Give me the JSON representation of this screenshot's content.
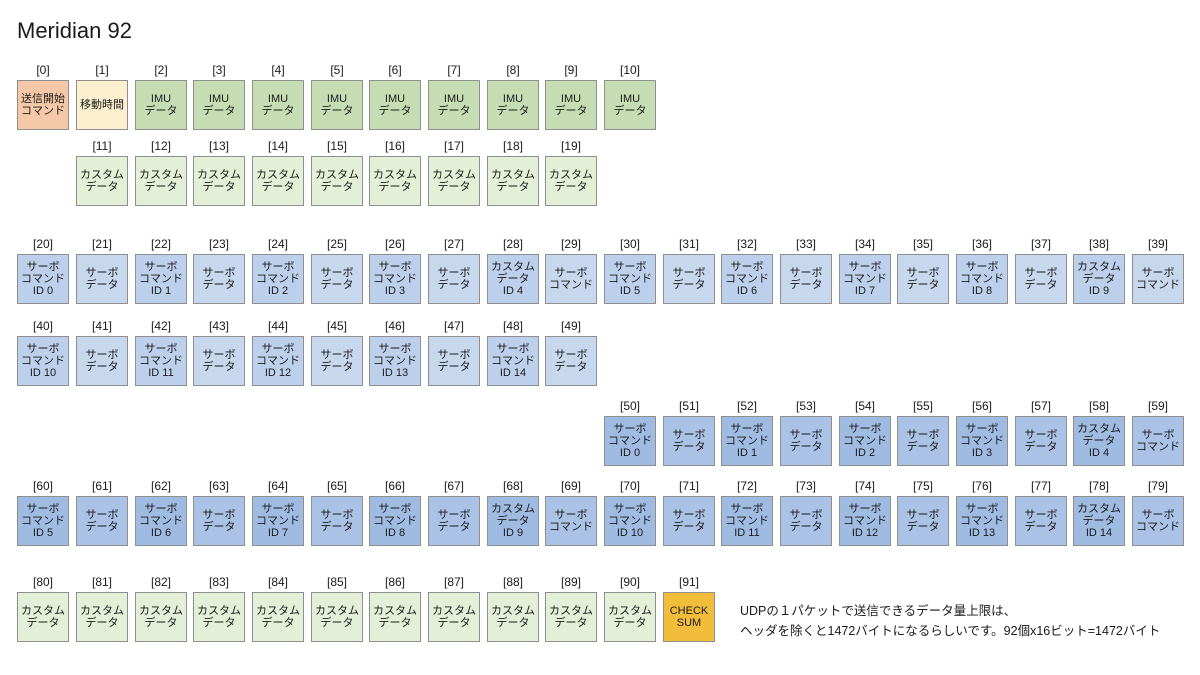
{
  "title": "Meridian 92",
  "note_line1": "UDPの１パケットで送信できるデータ量上限は、",
  "note_line2": "ヘッダを除くと1472バイトになるらしいです。92個x16ビット=1472バイト",
  "colors": {
    "cmd": "#f5c9a8",
    "move": "#fdf0cf",
    "imu": "#c6ddb3",
    "custom": "#e3efd6",
    "servo_cmd": "#bcd0eb",
    "servo_data": "#c7d7ee",
    "servo_cmd_alt": "#9fbbe2",
    "servo_data_alt": "#a9c2e5",
    "checksum": "#f3bd3c"
  },
  "cells": [
    {
      "index": "[0]",
      "label": "送信開始\nコマンド",
      "kind": "cmd"
    },
    {
      "index": "[1]",
      "label": "移動時間",
      "kind": "move"
    },
    {
      "index": "[2]",
      "label": "IMU\nデータ",
      "kind": "imu"
    },
    {
      "index": "[3]",
      "label": "IMU\nデータ",
      "kind": "imu"
    },
    {
      "index": "[4]",
      "label": "IMU\nデータ",
      "kind": "imu"
    },
    {
      "index": "[5]",
      "label": "IMU\nデータ",
      "kind": "imu"
    },
    {
      "index": "[6]",
      "label": "IMU\nデータ",
      "kind": "imu"
    },
    {
      "index": "[7]",
      "label": "IMU\nデータ",
      "kind": "imu"
    },
    {
      "index": "[8]",
      "label": "IMU\nデータ",
      "kind": "imu"
    },
    {
      "index": "[9]",
      "label": "IMU\nデータ",
      "kind": "imu"
    },
    {
      "index": "[10]",
      "label": "IMU\nデータ",
      "kind": "imu"
    },
    {
      "index": "[11]",
      "label": "カスタム\nデータ",
      "kind": "custom"
    },
    {
      "index": "[12]",
      "label": "カスタム\nデータ",
      "kind": "custom"
    },
    {
      "index": "[13]",
      "label": "カスタム\nデータ",
      "kind": "custom"
    },
    {
      "index": "[14]",
      "label": "カスタム\nデータ",
      "kind": "custom"
    },
    {
      "index": "[15]",
      "label": "カスタム\nデータ",
      "kind": "custom"
    },
    {
      "index": "[16]",
      "label": "カスタム\nデータ",
      "kind": "custom"
    },
    {
      "index": "[17]",
      "label": "カスタム\nデータ",
      "kind": "custom"
    },
    {
      "index": "[18]",
      "label": "カスタム\nデータ",
      "kind": "custom"
    },
    {
      "index": "[19]",
      "label": "カスタム\nデータ",
      "kind": "custom"
    },
    {
      "index": "[20]",
      "label": "サーボ\nコマンド\nID 0",
      "kind": "servo_cmd"
    },
    {
      "index": "[21]",
      "label": "サーボ\nデータ",
      "kind": "servo_data"
    },
    {
      "index": "[22]",
      "label": "サーボ\nコマンド\nID 1",
      "kind": "servo_cmd"
    },
    {
      "index": "[23]",
      "label": "サーボ\nデータ",
      "kind": "servo_data"
    },
    {
      "index": "[24]",
      "label": "サーボ\nコマンド\nID 2",
      "kind": "servo_cmd"
    },
    {
      "index": "[25]",
      "label": "サーボ\nデータ",
      "kind": "servo_data"
    },
    {
      "index": "[26]",
      "label": "サーボ\nコマンド\nID 3",
      "kind": "servo_cmd"
    },
    {
      "index": "[27]",
      "label": "サーボ\nデータ",
      "kind": "servo_data"
    },
    {
      "index": "[28]",
      "label": "カスタム\nデータ\nID 4",
      "kind": "servo_cmd"
    },
    {
      "index": "[29]",
      "label": "サーボ\nコマンド",
      "kind": "servo_data"
    },
    {
      "index": "[30]",
      "label": "サーボ\nコマンド\nID 5",
      "kind": "servo_cmd"
    },
    {
      "index": "[31]",
      "label": "サーボ\nデータ",
      "kind": "servo_data"
    },
    {
      "index": "[32]",
      "label": "サーボ\nコマンド\nID 6",
      "kind": "servo_cmd"
    },
    {
      "index": "[33]",
      "label": "サーボ\nデータ",
      "kind": "servo_data"
    },
    {
      "index": "[34]",
      "label": "サーボ\nコマンド\nID 7",
      "kind": "servo_cmd"
    },
    {
      "index": "[35]",
      "label": "サーボ\nデータ",
      "kind": "servo_data"
    },
    {
      "index": "[36]",
      "label": "サーボ\nコマンド\nID 8",
      "kind": "servo_cmd"
    },
    {
      "index": "[37]",
      "label": "サーボ\nデータ",
      "kind": "servo_data"
    },
    {
      "index": "[38]",
      "label": "カスタム\nデータ\nID 9",
      "kind": "servo_cmd"
    },
    {
      "index": "[39]",
      "label": "サーボ\nコマンド",
      "kind": "servo_data"
    },
    {
      "index": "[40]",
      "label": "サーボ\nコマンド\nID 10",
      "kind": "servo_cmd"
    },
    {
      "index": "[41]",
      "label": "サーボ\nデータ",
      "kind": "servo_data"
    },
    {
      "index": "[42]",
      "label": "サーボ\nコマンド\nID 11",
      "kind": "servo_cmd"
    },
    {
      "index": "[43]",
      "label": "サーボ\nデータ",
      "kind": "servo_data"
    },
    {
      "index": "[44]",
      "label": "サーボ\nコマンド\nID 12",
      "kind": "servo_cmd"
    },
    {
      "index": "[45]",
      "label": "サーボ\nデータ",
      "kind": "servo_data"
    },
    {
      "index": "[46]",
      "label": "サーボ\nコマンド\nID 13",
      "kind": "servo_cmd"
    },
    {
      "index": "[47]",
      "label": "サーボ\nデータ",
      "kind": "servo_data"
    },
    {
      "index": "[48]",
      "label": "サーボ\nコマンド\nID 14",
      "kind": "servo_cmd"
    },
    {
      "index": "[49]",
      "label": "サーボ\nデータ",
      "kind": "servo_data"
    },
    {
      "index": "[50]",
      "label": "サーボ\nコマンド\nID 0",
      "kind": "servo_cmd_alt"
    },
    {
      "index": "[51]",
      "label": "サーボ\nデータ",
      "kind": "servo_data_alt"
    },
    {
      "index": "[52]",
      "label": "サーボ\nコマンド\nID 1",
      "kind": "servo_cmd_alt"
    },
    {
      "index": "[53]",
      "label": "サーボ\nデータ",
      "kind": "servo_data_alt"
    },
    {
      "index": "[54]",
      "label": "サーボ\nコマンド\nID 2",
      "kind": "servo_cmd_alt"
    },
    {
      "index": "[55]",
      "label": "サーボ\nデータ",
      "kind": "servo_data_alt"
    },
    {
      "index": "[56]",
      "label": "サーボ\nコマンド\nID 3",
      "kind": "servo_cmd_alt"
    },
    {
      "index": "[57]",
      "label": "サーボ\nデータ",
      "kind": "servo_data_alt"
    },
    {
      "index": "[58]",
      "label": "カスタム\nデータ\nID 4",
      "kind": "servo_cmd_alt"
    },
    {
      "index": "[59]",
      "label": "サーボ\nコマンド",
      "kind": "servo_data_alt"
    },
    {
      "index": "[60]",
      "label": "サーボ\nコマンド\nID 5",
      "kind": "servo_cmd_alt"
    },
    {
      "index": "[61]",
      "label": "サーボ\nデータ",
      "kind": "servo_data_alt"
    },
    {
      "index": "[62]",
      "label": "サーボ\nコマンド\nID 6",
      "kind": "servo_cmd_alt"
    },
    {
      "index": "[63]",
      "label": "サーボ\nデータ",
      "kind": "servo_data_alt"
    },
    {
      "index": "[64]",
      "label": "サーボ\nコマンド\nID 7",
      "kind": "servo_cmd_alt"
    },
    {
      "index": "[65]",
      "label": "サーボ\nデータ",
      "kind": "servo_data_alt"
    },
    {
      "index": "[66]",
      "label": "サーボ\nコマンド\nID 8",
      "kind": "servo_cmd_alt"
    },
    {
      "index": "[67]",
      "label": "サーボ\nデータ",
      "kind": "servo_data_alt"
    },
    {
      "index": "[68]",
      "label": "カスタム\nデータ\nID 9",
      "kind": "servo_cmd_alt"
    },
    {
      "index": "[69]",
      "label": "サーボ\nコマンド",
      "kind": "servo_data_alt"
    },
    {
      "index": "[70]",
      "label": "サーボ\nコマンド\nID 10",
      "kind": "servo_cmd_alt"
    },
    {
      "index": "[71]",
      "label": "サーボ\nデータ",
      "kind": "servo_data_alt"
    },
    {
      "index": "[72]",
      "label": "サーボ\nコマンド\nID 11",
      "kind": "servo_cmd_alt"
    },
    {
      "index": "[73]",
      "label": "サーボ\nデータ",
      "kind": "servo_data_alt"
    },
    {
      "index": "[74]",
      "label": "サーボ\nコマンド\nID 12",
      "kind": "servo_cmd_alt"
    },
    {
      "index": "[75]",
      "label": "サーボ\nデータ",
      "kind": "servo_data_alt"
    },
    {
      "index": "[76]",
      "label": "サーボ\nコマンド\nID 13",
      "kind": "servo_cmd_alt"
    },
    {
      "index": "[77]",
      "label": "サーボ\nデータ",
      "kind": "servo_data_alt"
    },
    {
      "index": "[78]",
      "label": "カスタム\nデータ\nID 14",
      "kind": "servo_cmd_alt"
    },
    {
      "index": "[79]",
      "label": "サーボ\nコマンド",
      "kind": "servo_data_alt"
    },
    {
      "index": "[80]",
      "label": "カスタム\nデータ",
      "kind": "custom"
    },
    {
      "index": "[81]",
      "label": "カスタム\nデータ",
      "kind": "custom"
    },
    {
      "index": "[82]",
      "label": "カスタム\nデータ",
      "kind": "custom"
    },
    {
      "index": "[83]",
      "label": "カスタム\nデータ",
      "kind": "custom"
    },
    {
      "index": "[84]",
      "label": "カスタム\nデータ",
      "kind": "custom"
    },
    {
      "index": "[85]",
      "label": "カスタム\nデータ",
      "kind": "custom"
    },
    {
      "index": "[86]",
      "label": "カスタム\nデータ",
      "kind": "custom"
    },
    {
      "index": "[87]",
      "label": "カスタム\nデータ",
      "kind": "custom"
    },
    {
      "index": "[88]",
      "label": "カスタム\nデータ",
      "kind": "custom"
    },
    {
      "index": "[89]",
      "label": "カスタム\nデータ",
      "kind": "custom"
    },
    {
      "index": "[90]",
      "label": "カスタム\nデータ",
      "kind": "custom"
    },
    {
      "index": "[91]",
      "label": "CHECK\nSUM",
      "kind": "checksum"
    }
  ]
}
